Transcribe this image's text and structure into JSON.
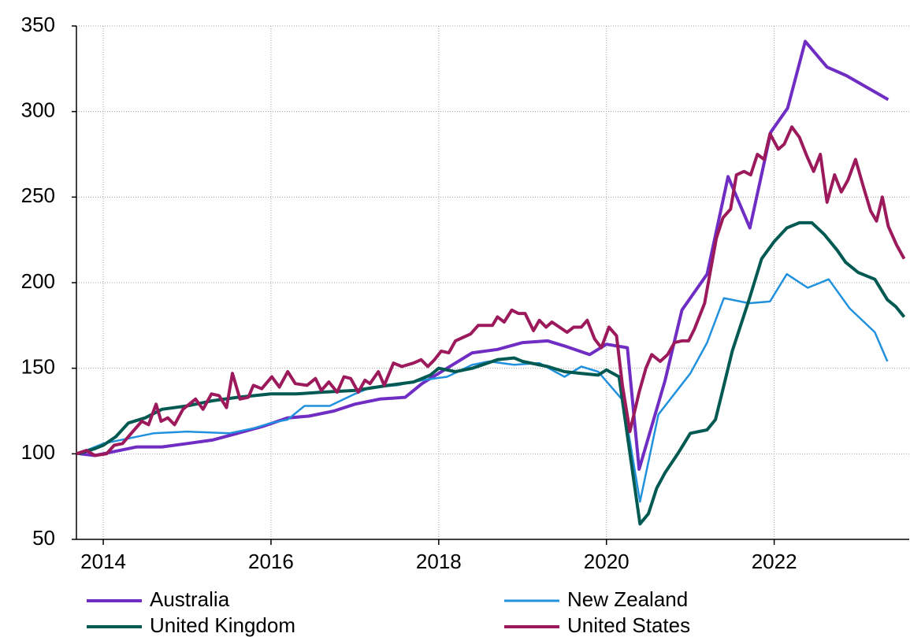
{
  "chart_data": {
    "type": "line",
    "xlim": [
      2013.68,
      2023.61
    ],
    "xticks": [
      2014,
      2016,
      2018,
      2020,
      2022
    ],
    "ylim": [
      50,
      350
    ],
    "yticks": [
      50,
      100,
      150,
      200,
      250,
      300,
      350
    ],
    "grid": true,
    "legend": "bottom",
    "series": [
      {
        "name": "Australia",
        "color": "#6f2dc4",
        "x": [
          2013.72,
          2013.9,
          2014.0,
          2014.4,
          2014.7,
          2015.0,
          2015.3,
          2015.6,
          2015.9,
          2016.2,
          2016.45,
          2016.75,
          2017.0,
          2017.3,
          2017.6,
          2017.8,
          2018.0,
          2018.2,
          2018.4,
          2018.7,
          2019.0,
          2019.3,
          2019.5,
          2019.8,
          2020.0,
          2020.25,
          2020.39,
          2020.7,
          2020.9,
          2021.2,
          2021.45,
          2021.71,
          2021.96,
          2022.16,
          2022.37,
          2022.63,
          2022.86,
          2023.36
        ],
        "values": [
          100,
          99,
          100,
          104,
          104,
          106,
          108,
          112,
          116,
          121,
          122,
          125,
          129,
          132,
          133,
          141,
          147,
          153,
          159,
          161,
          165,
          166,
          163,
          158,
          164,
          162,
          91,
          143,
          184,
          205,
          262,
          232,
          288,
          302,
          341,
          326,
          321,
          307
        ]
      },
      {
        "name": "New Zealand",
        "color": "#2191dd",
        "x": [
          2013.7,
          2014.0,
          2014.3,
          2014.6,
          2015.0,
          2015.5,
          2015.8,
          2016.0,
          2016.2,
          2016.4,
          2016.7,
          2017.0,
          2017.2,
          2017.5,
          2017.8,
          2018.1,
          2018.4,
          2018.6,
          2018.9,
          2019.2,
          2019.5,
          2019.7,
          2019.9,
          2020.2,
          2020.4,
          2020.62,
          2021.0,
          2021.2,
          2021.4,
          2021.7,
          2021.95,
          2022.15,
          2022.4,
          2022.65,
          2022.9,
          2023.2,
          2023.35
        ],
        "values": [
          100,
          106,
          109,
          112,
          113,
          112,
          115,
          118,
          120,
          128,
          128,
          135,
          139,
          140,
          143,
          145,
          152,
          154,
          152,
          153,
          145,
          151,
          148,
          131,
          72,
          123,
          147,
          165,
          191,
          188,
          189,
          205,
          197,
          202,
          185,
          171,
          154
        ]
      },
      {
        "name": "United Kingdom",
        "color": "#005a52",
        "x": [
          2013.7,
          2013.9,
          2014.0,
          2014.15,
          2014.3,
          2014.5,
          2014.7,
          2015.0,
          2015.3,
          2015.6,
          2016.0,
          2016.3,
          2016.6,
          2017.0,
          2017.4,
          2017.7,
          2017.9,
          2018.0,
          2018.2,
          2018.4,
          2018.7,
          2018.9,
          2019.0,
          2019.3,
          2019.5,
          2019.7,
          2019.9,
          2020.0,
          2020.15,
          2020.4,
          2020.5,
          2020.6,
          2020.7,
          2020.85,
          2021.0,
          2021.2,
          2021.3,
          2021.4,
          2021.5,
          2021.7,
          2021.85,
          2022.0,
          2022.15,
          2022.3,
          2022.45,
          2022.6,
          2022.75,
          2022.85,
          2023.0,
          2023.2,
          2023.35,
          2023.45,
          2023.55
        ],
        "values": [
          100,
          103,
          105,
          110,
          118,
          121,
          126,
          128,
          131,
          133,
          135,
          135,
          136,
          137,
          140,
          142,
          146,
          150,
          148,
          150,
          155,
          156,
          154,
          151,
          148,
          147,
          146,
          149,
          145,
          59,
          65,
          80,
          89,
          100,
          112,
          114,
          120,
          140,
          160,
          190,
          214,
          224,
          232,
          235,
          235,
          228,
          219,
          212,
          206,
          202,
          190,
          186,
          180
        ]
      },
      {
        "name": "United States",
        "color": "#9c1a5c",
        "x": [
          2013.68,
          2013.8,
          2013.9,
          2014.04,
          2014.13,
          2014.23,
          2014.37,
          2014.46,
          2014.54,
          2014.63,
          2014.69,
          2014.77,
          2014.85,
          2014.95,
          2015.1,
          2015.19,
          2015.29,
          2015.38,
          2015.47,
          2015.54,
          2015.63,
          2015.73,
          2015.79,
          2015.89,
          2016.01,
          2016.1,
          2016.2,
          2016.29,
          2016.43,
          2016.53,
          2016.6,
          2016.69,
          2016.79,
          2016.87,
          2016.95,
          2017.04,
          2017.12,
          2017.18,
          2017.28,
          2017.35,
          2017.46,
          2017.56,
          2017.7,
          2017.79,
          2017.87,
          2017.95,
          2018.03,
          2018.12,
          2018.2,
          2018.29,
          2018.38,
          2018.47,
          2018.56,
          2018.64,
          2018.7,
          2018.78,
          2018.87,
          2018.95,
          2019.03,
          2019.13,
          2019.2,
          2019.28,
          2019.35,
          2019.44,
          2019.53,
          2019.61,
          2019.7,
          2019.77,
          2019.86,
          2019.94,
          2020.03,
          2020.12,
          2020.19,
          2020.28,
          2020.39,
          2020.47,
          2020.54,
          2020.64,
          2020.73,
          2020.81,
          2020.9,
          2020.98,
          2021.05,
          2021.17,
          2021.31,
          2021.39,
          2021.48,
          2021.55,
          2021.64,
          2021.72,
          2021.8,
          2021.88,
          2021.95,
          2022.05,
          2022.12,
          2022.21,
          2022.3,
          2022.39,
          2022.47,
          2022.55,
          2022.63,
          2022.72,
          2022.8,
          2022.88,
          2022.97,
          2023.07,
          2023.15,
          2023.22,
          2023.29,
          2023.36,
          2023.46,
          2023.55
        ],
        "values": [
          100,
          102,
          99,
          100,
          105,
          106,
          114,
          119,
          117,
          129,
          119,
          121,
          117,
          126,
          132,
          126,
          135,
          134,
          127,
          147,
          132,
          133,
          140,
          138,
          145,
          139,
          148,
          141,
          140,
          144,
          137,
          142,
          136,
          145,
          144,
          136,
          143,
          141,
          148,
          140,
          153,
          151,
          153,
          155,
          151,
          155,
          160,
          159,
          166,
          168,
          170,
          175,
          175,
          175,
          180,
          177,
          184,
          182,
          182,
          172,
          178,
          174,
          177,
          174,
          171,
          174,
          174,
          178,
          167,
          162,
          174,
          169,
          140,
          113,
          136,
          150,
          158,
          154,
          158,
          165,
          166,
          166,
          173,
          188,
          226,
          238,
          243,
          263,
          265,
          263,
          275,
          272,
          287,
          278,
          281,
          291,
          285,
          274,
          265,
          275,
          247,
          263,
          253,
          260,
          272,
          255,
          242,
          236,
          250,
          233,
          222,
          214
        ]
      }
    ]
  }
}
